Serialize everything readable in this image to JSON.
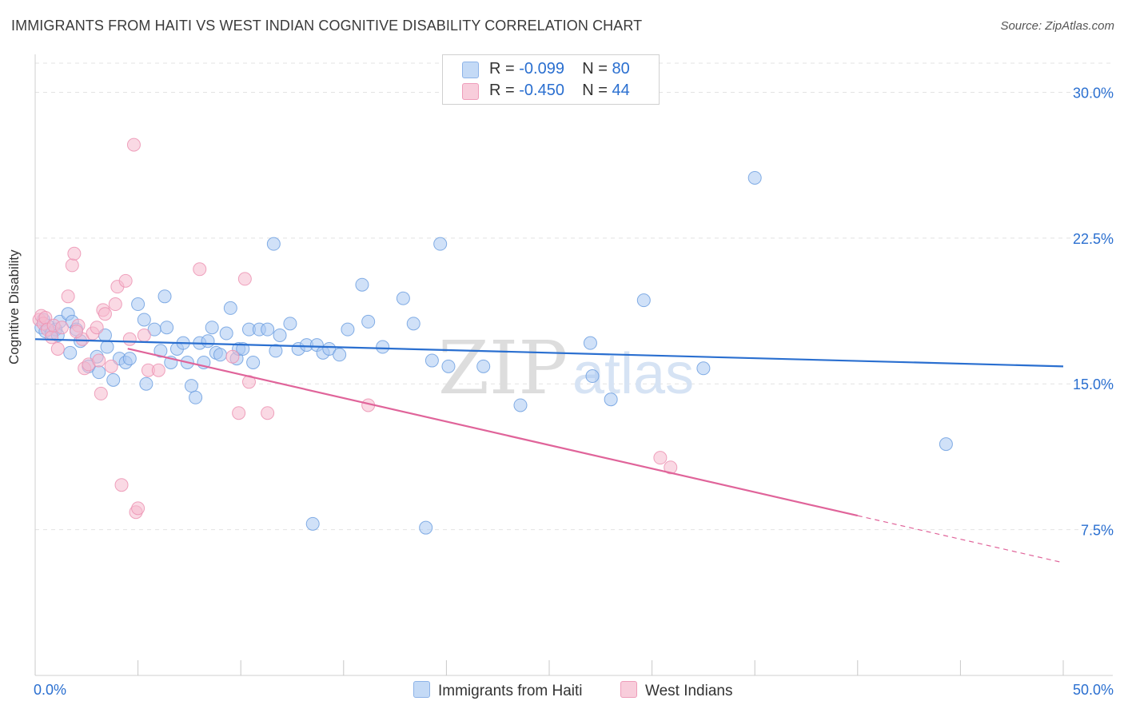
{
  "title": "IMMIGRANTS FROM HAITI VS WEST INDIAN COGNITIVE DISABILITY CORRELATION CHART",
  "source": "Source: ZipAtlas.com",
  "watermark": {
    "zip": "ZIP",
    "atlas": "atlas"
  },
  "legend_top": [
    {
      "r_label": "R =",
      "r_value": "-0.099",
      "n_label": "N =",
      "n_value": "80",
      "color": "#a9c8f2"
    },
    {
      "r_label": "R =",
      "r_value": "-0.450",
      "n_label": "N =",
      "n_value": "44",
      "color": "#f5b9cd"
    }
  ],
  "legend_bottom": [
    {
      "label": "Immigrants from Haiti",
      "color": "#a9c8f2"
    },
    {
      "label": "West Indians",
      "color": "#f5b9cd"
    }
  ],
  "chart_data": {
    "type": "scatter",
    "title": "IMMIGRANTS FROM HAITI VS WEST INDIAN COGNITIVE DISABILITY CORRELATION CHART",
    "xlabel": "",
    "ylabel": "Cognitive Disability",
    "xlim": [
      0,
      50
    ],
    "ylim": [
      0,
      31.5
    ],
    "x_tick_labels": [
      "0.0%",
      "50.0%"
    ],
    "y_ticks": [
      7.5,
      15.0,
      22.5,
      30.0
    ],
    "y_tick_labels": [
      "7.5%",
      "15.0%",
      "22.5%",
      "30.0%"
    ],
    "grid": true,
    "series": [
      {
        "name": "Immigrants from Haiti",
        "color": "#6fa0e0",
        "fill": "#a9c8f2",
        "line_color": "#2a6fd0",
        "trend": {
          "x0": 0,
          "y0": 17.3,
          "x1": 50,
          "y1": 15.9,
          "dash_from": null
        },
        "points": [
          [
            0.3,
            17.9
          ],
          [
            0.5,
            17.7
          ],
          [
            0.6,
            18.0
          ],
          [
            0.8,
            17.6
          ],
          [
            1.0,
            17.8
          ],
          [
            1.2,
            18.2
          ],
          [
            1.6,
            18.6
          ],
          [
            1.8,
            18.2
          ],
          [
            2.0,
            17.8
          ],
          [
            2.2,
            17.2
          ],
          [
            1.7,
            16.6
          ],
          [
            2.6,
            15.9
          ],
          [
            3.0,
            16.4
          ],
          [
            3.1,
            15.6
          ],
          [
            3.4,
            17.5
          ],
          [
            3.5,
            16.9
          ],
          [
            3.8,
            15.2
          ],
          [
            4.1,
            16.3
          ],
          [
            4.4,
            16.1
          ],
          [
            4.6,
            16.3
          ],
          [
            5.0,
            19.1
          ],
          [
            5.3,
            18.3
          ],
          [
            5.4,
            15.0
          ],
          [
            5.8,
            17.8
          ],
          [
            6.1,
            16.7
          ],
          [
            6.3,
            19.5
          ],
          [
            6.4,
            17.9
          ],
          [
            6.6,
            16.1
          ],
          [
            6.9,
            16.8
          ],
          [
            7.2,
            17.1
          ],
          [
            7.4,
            16.1
          ],
          [
            7.6,
            14.9
          ],
          [
            7.8,
            14.3
          ],
          [
            8.0,
            17.1
          ],
          [
            8.2,
            16.1
          ],
          [
            8.4,
            17.2
          ],
          [
            8.6,
            17.9
          ],
          [
            8.8,
            16.6
          ],
          [
            9.0,
            16.5
          ],
          [
            9.3,
            17.6
          ],
          [
            9.5,
            18.9
          ],
          [
            9.8,
            16.3
          ],
          [
            9.9,
            16.8
          ],
          [
            10.1,
            16.8
          ],
          [
            10.4,
            17.8
          ],
          [
            10.6,
            16.1
          ],
          [
            10.9,
            17.8
          ],
          [
            11.3,
            17.8
          ],
          [
            11.6,
            22.2
          ],
          [
            11.7,
            16.7
          ],
          [
            11.9,
            17.5
          ],
          [
            12.4,
            18.1
          ],
          [
            12.8,
            16.8
          ],
          [
            13.2,
            17.0
          ],
          [
            13.5,
            7.8
          ],
          [
            13.7,
            17.0
          ],
          [
            14.0,
            16.6
          ],
          [
            14.3,
            16.8
          ],
          [
            14.8,
            16.5
          ],
          [
            15.9,
            20.1
          ],
          [
            16.2,
            18.2
          ],
          [
            16.9,
            16.9
          ],
          [
            17.9,
            19.4
          ],
          [
            18.4,
            18.1
          ],
          [
            19.0,
            7.6
          ],
          [
            19.3,
            16.2
          ],
          [
            19.7,
            22.2
          ],
          [
            20.1,
            15.9
          ],
          [
            21.8,
            15.9
          ],
          [
            23.6,
            13.9
          ],
          [
            27.0,
            17.1
          ],
          [
            27.1,
            15.4
          ],
          [
            28.0,
            14.2
          ],
          [
            29.6,
            19.3
          ],
          [
            32.5,
            15.8
          ],
          [
            35.0,
            25.6
          ],
          [
            44.3,
            11.9
          ],
          [
            0.4,
            18.3
          ],
          [
            1.1,
            17.5
          ],
          [
            15.2,
            17.8
          ]
        ]
      },
      {
        "name": "West Indians",
        "color": "#ec93b3",
        "fill": "#f5b9cd",
        "line_color": "#e0649a",
        "trend": {
          "x0": 0,
          "y0": 17.9,
          "x1": 50,
          "y1": 5.8,
          "dash_from": 40
        },
        "points": [
          [
            0.2,
            18.3
          ],
          [
            0.3,
            18.5
          ],
          [
            0.4,
            18.1
          ],
          [
            0.5,
            18.4
          ],
          [
            0.6,
            17.8
          ],
          [
            0.8,
            17.4
          ],
          [
            0.9,
            18.0
          ],
          [
            1.1,
            16.8
          ],
          [
            1.3,
            17.9
          ],
          [
            1.6,
            19.5
          ],
          [
            1.8,
            21.1
          ],
          [
            1.9,
            21.7
          ],
          [
            2.1,
            18.0
          ],
          [
            2.3,
            17.3
          ],
          [
            2.4,
            15.8
          ],
          [
            2.6,
            16.0
          ],
          [
            2.8,
            17.6
          ],
          [
            3.0,
            17.9
          ],
          [
            3.1,
            16.2
          ],
          [
            3.2,
            14.5
          ],
          [
            3.3,
            18.8
          ],
          [
            3.4,
            18.6
          ],
          [
            3.7,
            15.9
          ],
          [
            3.9,
            19.1
          ],
          [
            4.0,
            20.0
          ],
          [
            4.2,
            9.8
          ],
          [
            4.4,
            20.3
          ],
          [
            4.6,
            17.3
          ],
          [
            4.8,
            27.3
          ],
          [
            4.9,
            8.4
          ],
          [
            5.0,
            8.6
          ],
          [
            5.3,
            17.5
          ],
          [
            5.5,
            15.7
          ],
          [
            6.0,
            15.7
          ],
          [
            8.0,
            20.9
          ],
          [
            9.6,
            16.4
          ],
          [
            9.9,
            13.5
          ],
          [
            10.2,
            20.4
          ],
          [
            10.4,
            15.1
          ],
          [
            11.3,
            13.5
          ],
          [
            16.2,
            13.9
          ],
          [
            30.4,
            11.2
          ],
          [
            30.9,
            10.7
          ],
          [
            2.0,
            17.7
          ]
        ]
      }
    ]
  }
}
